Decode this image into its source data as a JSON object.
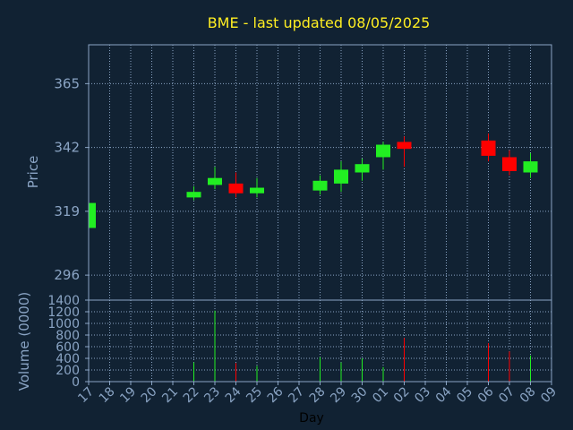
{
  "chart_data": {
    "type": "candlestick",
    "title": "BME - last updated 08/05/2025",
    "xlabel": "Day",
    "price_panel": {
      "ylabel": "Price",
      "yticks": [
        296,
        319,
        342,
        365
      ],
      "ylim": [
        287,
        379
      ]
    },
    "volume_panel": {
      "ylabel": "Volume (0000)",
      "yticks": [
        0,
        200,
        400,
        600,
        800,
        1000,
        1200,
        1400
      ],
      "ylim": [
        0,
        1400
      ]
    },
    "x_tick_labels": [
      "17",
      "18",
      "19",
      "20",
      "21",
      "22",
      "23",
      "24",
      "25",
      "26",
      "27",
      "28",
      "29",
      "30",
      "01",
      "02",
      "03",
      "04",
      "05",
      "06",
      "07",
      "08",
      "09"
    ],
    "candles": [
      {
        "day": "17",
        "idx": 0,
        "open": 313,
        "close": 322,
        "high": 323,
        "low": 312,
        "volume": 0
      },
      {
        "day": "22",
        "idx": 5,
        "open": 324,
        "close": 326,
        "high": 328,
        "low": 323,
        "volume": 330
      },
      {
        "day": "23",
        "idx": 6,
        "open": 328.5,
        "close": 331,
        "high": 335,
        "low": 327,
        "volume": 1220
      },
      {
        "day": "24",
        "idx": 7,
        "open": 329,
        "close": 325.5,
        "high": 333,
        "low": 324,
        "volume": 320
      },
      {
        "day": "25",
        "idx": 8,
        "open": 325.5,
        "close": 327.5,
        "high": 331,
        "low": 324,
        "volume": 270
      },
      {
        "day": "28",
        "idx": 11,
        "open": 326.5,
        "close": 330,
        "high": 332,
        "low": 325,
        "volume": 420
      },
      {
        "day": "29",
        "idx": 12,
        "open": 329,
        "close": 334,
        "high": 337,
        "low": 326,
        "volume": 330
      },
      {
        "day": "30",
        "idx": 13,
        "open": 333,
        "close": 336,
        "high": 338,
        "low": 330,
        "volume": 400
      },
      {
        "day": "01",
        "idx": 14,
        "open": 338.5,
        "close": 343,
        "high": 344,
        "low": 334,
        "volume": 250
      },
      {
        "day": "02",
        "idx": 15,
        "open": 344,
        "close": 341.5,
        "high": 346,
        "low": 335,
        "volume": 750
      },
      {
        "day": "06",
        "idx": 19,
        "open": 344.5,
        "close": 339,
        "high": 347,
        "low": 337,
        "volume": 660
      },
      {
        "day": "07",
        "idx": 20,
        "open": 338.5,
        "close": 333.5,
        "high": 341,
        "low": 332,
        "volume": 520
      },
      {
        "day": "08",
        "idx": 21,
        "open": 333,
        "close": 337,
        "high": 340,
        "low": 331,
        "volume": 450
      }
    ]
  },
  "colors": {
    "background": "#112233",
    "plot_border": "#8aa4c4",
    "grid": "#8aa4c4",
    "up": "#22ee22",
    "down": "#ff0000",
    "title": "#ffee22",
    "axis_text": "#8aa4c4"
  }
}
